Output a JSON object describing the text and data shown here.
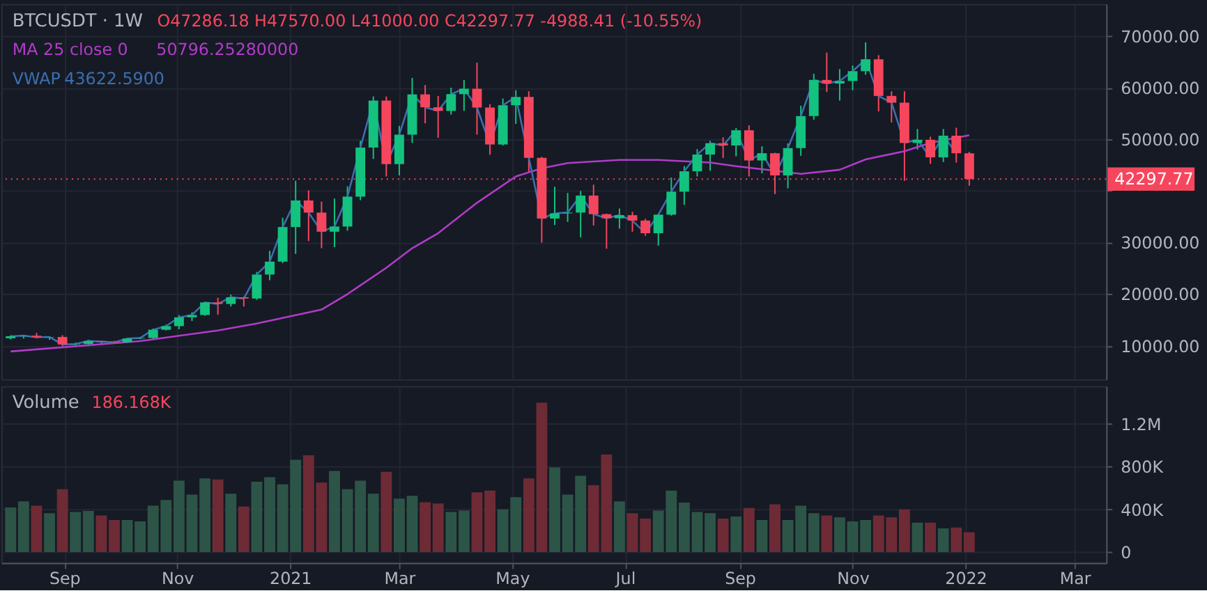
{
  "chart_data": [
    {
      "type": "candlestick",
      "title": "BTCUSDT · 1W",
      "annotations": [
        "O47286.18 H47570.00 L41000.00 C42297.77 -4988.41 (-10.55%)",
        "50796.25280000",
        "43622.5900"
      ],
      "x": [
        "2020-08-03",
        "2020-08-10",
        "2020-08-17",
        "2020-08-24",
        "2020-08-31",
        "2020-09-07",
        "2020-09-14",
        "2020-09-21",
        "2020-09-28",
        "2020-10-05",
        "2020-10-12",
        "2020-10-19",
        "2020-10-26",
        "2020-11-02",
        "2020-11-09",
        "2020-11-16",
        "2020-11-23",
        "2020-11-30",
        "2020-12-07",
        "2020-12-14",
        "2020-12-21",
        "2020-12-28",
        "2021-01-04",
        "2021-01-11",
        "2021-01-18",
        "2021-01-25",
        "2021-02-01",
        "2021-02-08",
        "2021-02-15",
        "2021-02-22",
        "2021-03-01",
        "2021-03-08",
        "2021-03-15",
        "2021-03-22",
        "2021-03-29",
        "2021-04-05",
        "2021-04-12",
        "2021-04-19",
        "2021-04-26",
        "2021-05-03",
        "2021-05-10",
        "2021-05-17",
        "2021-05-24",
        "2021-05-31",
        "2021-06-07",
        "2021-06-14",
        "2021-06-21",
        "2021-06-28",
        "2021-07-05",
        "2021-07-12",
        "2021-07-19",
        "2021-07-26",
        "2021-08-02",
        "2021-08-09",
        "2021-08-16",
        "2021-08-23",
        "2021-08-30",
        "2021-09-06",
        "2021-09-13",
        "2021-09-20",
        "2021-09-27",
        "2021-10-04",
        "2021-10-11",
        "2021-10-18",
        "2021-10-25",
        "2021-11-01",
        "2021-11-08",
        "2021-11-15",
        "2021-11-22",
        "2021-11-29",
        "2021-12-06",
        "2021-12-13",
        "2021-12-20",
        "2021-12-27",
        "2022-01-03"
      ],
      "ohlc": [
        [
          11450,
          12050,
          11200,
          11850
        ],
        [
          11850,
          12150,
          11400,
          11950
        ],
        [
          11950,
          12470,
          11400,
          11650
        ],
        [
          11650,
          11800,
          11150,
          11700
        ],
        [
          11700,
          12050,
          9900,
          10250
        ],
        [
          10250,
          10600,
          9900,
          10330
        ],
        [
          10330,
          11180,
          10150,
          10930
        ],
        [
          10930,
          10950,
          10300,
          10780
        ],
        [
          10780,
          10950,
          10400,
          10670
        ],
        [
          10670,
          11500,
          10550,
          11390
        ],
        [
          11390,
          11720,
          11250,
          11500
        ],
        [
          11500,
          13350,
          11400,
          13100
        ],
        [
          13100,
          14100,
          12950,
          13800
        ],
        [
          13800,
          15960,
          13200,
          15500
        ],
        [
          15500,
          16480,
          14800,
          15960
        ],
        [
          15960,
          18500,
          15800,
          18400
        ],
        [
          18400,
          19300,
          16000,
          18100
        ],
        [
          18100,
          19900,
          17600,
          19400
        ],
        [
          19400,
          19500,
          17600,
          19150
        ],
        [
          19150,
          24300,
          18900,
          23800
        ],
        [
          23800,
          28400,
          22700,
          26300
        ],
        [
          26300,
          34800,
          26000,
          33000
        ],
        [
          33000,
          41950,
          27800,
          38150
        ],
        [
          38150,
          40100,
          30300,
          35800
        ],
        [
          35800,
          37900,
          28900,
          32100
        ],
        [
          32100,
          38500,
          29100,
          33100
        ],
        [
          33100,
          40900,
          32300,
          38900
        ],
        [
          38900,
          49700,
          38200,
          48400
        ],
        [
          48400,
          58300,
          46200,
          57500
        ],
        [
          57500,
          58300,
          42800,
          45200
        ],
        [
          45200,
          52600,
          43000,
          50900
        ],
        [
          50900,
          61900,
          49300,
          58700
        ],
        [
          58700,
          60500,
          53100,
          56200
        ],
        [
          56200,
          58400,
          50300,
          55500
        ],
        [
          55500,
          60000,
          54800,
          58750
        ],
        [
          58750,
          61500,
          55500,
          59800
        ],
        [
          59800,
          64850,
          50900,
          56150
        ],
        [
          56150,
          56800,
          47000,
          49000
        ],
        [
          49000,
          57900,
          48800,
          56600
        ],
        [
          56600,
          59500,
          53000,
          58200
        ],
        [
          58200,
          59300,
          43700,
          46400
        ],
        [
          46400,
          46600,
          30000,
          34650
        ],
        [
          34650,
          40800,
          33400,
          35650
        ],
        [
          35650,
          39600,
          34000,
          35800
        ],
        [
          35800,
          40000,
          31000,
          39100
        ],
        [
          39100,
          41200,
          33300,
          35500
        ],
        [
          35500,
          35600,
          28800,
          34700
        ],
        [
          34700,
          36600,
          32700,
          35300
        ],
        [
          35300,
          35950,
          32100,
          34250
        ],
        [
          34250,
          34600,
          31300,
          31800
        ],
        [
          31800,
          35500,
          29400,
          35400
        ],
        [
          35400,
          42600,
          35200,
          39850
        ],
        [
          39850,
          44800,
          37300,
          43800
        ],
        [
          43800,
          48100,
          42800,
          47050
        ],
        [
          47050,
          49700,
          43900,
          49250
        ],
        [
          49250,
          50400,
          46400,
          48800
        ],
        [
          48800,
          52200,
          46700,
          51750
        ],
        [
          51750,
          52700,
          42800,
          45900
        ],
        [
          45900,
          48650,
          43400,
          47300
        ],
        [
          47300,
          47400,
          39400,
          43000
        ],
        [
          43000,
          49200,
          40500,
          48300
        ],
        [
          48300,
          56500,
          46800,
          54500
        ],
        [
          54500,
          62700,
          53800,
          61500
        ],
        [
          61500,
          66800,
          59150,
          60800
        ],
        [
          60800,
          63600,
          57500,
          61300
        ],
        [
          61300,
          64300,
          59500,
          63200
        ],
        [
          63200,
          68800,
          62500,
          65500
        ],
        [
          65500,
          66300,
          55400,
          58400
        ],
        [
          58400,
          59300,
          53250,
          57100
        ],
        [
          57100,
          59300,
          41950,
          49300
        ],
        [
          49300,
          52000,
          48000,
          49900
        ],
        [
          49900,
          50500,
          45250,
          46500
        ],
        [
          46500,
          52000,
          45600,
          50700
        ],
        [
          50700,
          52250,
          45500,
          47300
        ],
        [
          47286.18,
          47570,
          41000,
          42297.77
        ]
      ],
      "colors": [
        "#13c27f",
        "#13c27f",
        "#f6465d",
        "#13c27f",
        "#f6465d",
        "#13c27f",
        "#13c27f",
        "#f6465d",
        "#f6465d",
        "#13c27f",
        "#13c27f",
        "#13c27f",
        "#13c27f",
        "#13c27f",
        "#13c27f",
        "#13c27f",
        "#f6465d",
        "#13c27f",
        "#f6465d",
        "#13c27f",
        "#13c27f",
        "#13c27f",
        "#13c27f",
        "#f6465d",
        "#f6465d",
        "#13c27f",
        "#13c27f",
        "#13c27f",
        "#13c27f",
        "#f6465d",
        "#13c27f",
        "#13c27f",
        "#f6465d",
        "#f6465d",
        "#13c27f",
        "#13c27f",
        "#f6465d",
        "#f6465d",
        "#13c27f",
        "#13c27f",
        "#f6465d",
        "#f6465d",
        "#13c27f",
        "#13c27f",
        "#13c27f",
        "#f6465d",
        "#f6465d",
        "#13c27f",
        "#f6465d",
        "#f6465d",
        "#13c27f",
        "#13c27f",
        "#13c27f",
        "#13c27f",
        "#13c27f",
        "#f6465d",
        "#13c27f",
        "#f6465d",
        "#13c27f",
        "#f6465d",
        "#13c27f",
        "#13c27f",
        "#13c27f",
        "#f6465d",
        "#13c27f",
        "#13c27f",
        "#13c27f",
        "#f6465d",
        "#f6465d",
        "#f6465d",
        "#13c27f",
        "#f6465d",
        "#13c27f",
        "#f6465d",
        "#f6465d"
      ],
      "series": [
        {
          "name": "MA 25 close 0",
          "type": "line",
          "color": "#b03cc8",
          "x": [
            "2020-08-03",
            "2020-10-12",
            "2020-11-23",
            "2020-12-14",
            "2021-01-18",
            "2021-02-01",
            "2021-02-22",
            "2021-03-08",
            "2021-03-22",
            "2021-04-12",
            "2021-05-03",
            "2021-05-17",
            "2021-05-31",
            "2021-06-28",
            "2021-07-19",
            "2021-08-16",
            "2021-08-30",
            "2021-09-20",
            "2021-10-04",
            "2021-10-25",
            "2021-11-08",
            "2021-11-29",
            "2021-12-13",
            "2022-01-03"
          ],
          "values": [
            8900,
            10900,
            12970,
            14300,
            17000,
            20000,
            25100,
            28900,
            31800,
            37700,
            42800,
            44400,
            45400,
            46000,
            46000,
            45500,
            44800,
            43900,
            43300,
            44100,
            46100,
            47700,
            49300,
            50796.2528
          ]
        },
        {
          "name": "VWAP",
          "type": "line",
          "color": "#3b6fb0",
          "values": [
            11850,
            11950,
            11650,
            11700,
            10250,
            10330,
            10930,
            10780,
            10670,
            11390,
            11500,
            13100,
            13800,
            15500,
            15960,
            18400,
            18100,
            19400,
            19150,
            23800,
            26300,
            33000,
            38150,
            35800,
            32100,
            33100,
            38900,
            48400,
            57500,
            45200,
            50900,
            58700,
            56200,
            55500,
            58750,
            59800,
            56150,
            49000,
            56600,
            58200,
            46400,
            34650,
            35650,
            35800,
            39100,
            35500,
            34700,
            35300,
            34250,
            31800,
            35400,
            39850,
            43800,
            47050,
            49250,
            48800,
            51750,
            45900,
            47300,
            43000,
            48300,
            54500,
            61500,
            60800,
            61300,
            63200,
            65500,
            58400,
            57100,
            49300,
            49900,
            46500,
            50700,
            47300,
            null
          ]
        }
      ],
      "xlim": [
        "2020-07-29",
        "2022-03-18"
      ],
      "xticks": [
        {
          "value": "2020-09-01",
          "label": null
        },
        {
          "value": "2020-11-01",
          "label": null
        },
        {
          "value": "2021-01-01",
          "label": null
        },
        {
          "value": "2021-03-01",
          "label": null
        },
        {
          "value": "2021-05-01",
          "label": null
        },
        {
          "value": "2021-07-01",
          "label": null
        },
        {
          "value": "2021-09-01",
          "label": null
        },
        {
          "value": "2021-11-01",
          "label": null
        },
        {
          "value": "2022-01-01",
          "label": null
        },
        {
          "value": "2022-03-01",
          "label": null
        }
      ],
      "ylim": [
        3500,
        76200
      ],
      "yticks": [
        {
          "value": 10000,
          "label": "10000.00"
        },
        {
          "value": 20000,
          "label": "20000.00"
        },
        {
          "value": 30000,
          "label": "30000.00"
        },
        {
          "value": 40000,
          "label": null
        },
        {
          "value": 50000,
          "label": "50000.00"
        },
        {
          "value": 60000,
          "label": "60000.00"
        },
        {
          "value": 70000,
          "label": "70000.00"
        }
      ],
      "ref_lines": [
        {
          "axis": "y",
          "value": 42297.77,
          "label": "42297.77",
          "color": "#f6465d",
          "line_style": "dotted"
        }
      ],
      "grid": true,
      "tick_labels": "y"
    },
    {
      "type": "bar",
      "title": "Volume",
      "annotations": [
        "186.168K"
      ],
      "x": [
        "2020-08-03",
        "2020-08-10",
        "2020-08-17",
        "2020-08-24",
        "2020-08-31",
        "2020-09-07",
        "2020-09-14",
        "2020-09-21",
        "2020-09-28",
        "2020-10-05",
        "2020-10-12",
        "2020-10-19",
        "2020-10-26",
        "2020-11-02",
        "2020-11-09",
        "2020-11-16",
        "2020-11-23",
        "2020-11-30",
        "2020-12-07",
        "2020-12-14",
        "2020-12-21",
        "2020-12-28",
        "2021-01-04",
        "2021-01-11",
        "2021-01-18",
        "2021-01-25",
        "2021-02-01",
        "2021-02-08",
        "2021-02-15",
        "2021-02-22",
        "2021-03-01",
        "2021-03-08",
        "2021-03-15",
        "2021-03-22",
        "2021-03-29",
        "2021-04-05",
        "2021-04-12",
        "2021-04-19",
        "2021-04-26",
        "2021-05-03",
        "2021-05-10",
        "2021-05-17",
        "2021-05-24",
        "2021-05-31",
        "2021-06-07",
        "2021-06-14",
        "2021-06-21",
        "2021-06-28",
        "2021-07-05",
        "2021-07-12",
        "2021-07-19",
        "2021-07-26",
        "2021-08-02",
        "2021-08-09",
        "2021-08-16",
        "2021-08-23",
        "2021-08-30",
        "2021-09-06",
        "2021-09-13",
        "2021-09-20",
        "2021-09-27",
        "2021-10-04",
        "2021-10-11",
        "2021-10-18",
        "2021-10-25",
        "2021-11-01",
        "2021-11-08",
        "2021-11-15",
        "2021-11-22",
        "2021-11-29",
        "2021-12-06",
        "2021-12-13",
        "2021-12-20",
        "2021-12-27",
        "2022-01-03"
      ],
      "values": [
        418000,
        476000,
        435000,
        364000,
        589000,
        376000,
        385000,
        343000,
        301000,
        301000,
        288000,
        435000,
        489000,
        669000,
        539000,
        690000,
        681000,
        548000,
        426000,
        660000,
        702000,
        635000,
        865000,
        907000,
        652000,
        761000,
        589000,
        669000,
        548000,
        752000,
        502000,
        527000,
        468000,
        456000,
        376000,
        389000,
        560000,
        577000,
        401000,
        514000,
        690000,
        1400000,
        794000,
        539000,
        715000,
        627000,
        915000,
        476000,
        364000,
        314000,
        389000,
        577000,
        464000,
        376000,
        364000,
        314000,
        334000,
        414000,
        301000,
        447000,
        301000,
        435000,
        364000,
        343000,
        326000,
        288000,
        301000,
        343000,
        326000,
        401000,
        276000,
        276000,
        222000,
        230000,
        186168
      ],
      "colors": [
        "#2c5547",
        "#2c5547",
        "#6e2b35",
        "#2c5547",
        "#6e2b35",
        "#2c5547",
        "#2c5547",
        "#6e2b35",
        "#6e2b35",
        "#2c5547",
        "#2c5547",
        "#2c5547",
        "#2c5547",
        "#2c5547",
        "#2c5547",
        "#2c5547",
        "#6e2b35",
        "#2c5547",
        "#6e2b35",
        "#2c5547",
        "#2c5547",
        "#2c5547",
        "#2c5547",
        "#6e2b35",
        "#6e2b35",
        "#2c5547",
        "#2c5547",
        "#2c5547",
        "#2c5547",
        "#6e2b35",
        "#2c5547",
        "#2c5547",
        "#6e2b35",
        "#6e2b35",
        "#2c5547",
        "#2c5547",
        "#6e2b35",
        "#6e2b35",
        "#2c5547",
        "#2c5547",
        "#6e2b35",
        "#6e2b35",
        "#2c5547",
        "#2c5547",
        "#2c5547",
        "#6e2b35",
        "#6e2b35",
        "#2c5547",
        "#6e2b35",
        "#6e2b35",
        "#2c5547",
        "#2c5547",
        "#2c5547",
        "#2c5547",
        "#2c5547",
        "#6e2b35",
        "#2c5547",
        "#6e2b35",
        "#2c5547",
        "#6e2b35",
        "#2c5547",
        "#2c5547",
        "#2c5547",
        "#6e2b35",
        "#2c5547",
        "#2c5547",
        "#2c5547",
        "#6e2b35",
        "#6e2b35",
        "#6e2b35",
        "#2c5547",
        "#6e2b35",
        "#2c5547",
        "#6e2b35",
        "#6e2b35"
      ],
      "xlim": [
        "2020-07-29",
        "2022-03-18"
      ],
      "xticks": [
        {
          "value": "2020-09-01",
          "label": "Sep"
        },
        {
          "value": "2020-11-01",
          "label": "Nov"
        },
        {
          "value": "2021-01-01",
          "label": "2021"
        },
        {
          "value": "2021-03-01",
          "label": "Mar"
        },
        {
          "value": "2021-05-01",
          "label": "May"
        },
        {
          "value": "2021-07-01",
          "label": "Jul"
        },
        {
          "value": "2021-09-01",
          "label": "Sep"
        },
        {
          "value": "2021-11-01",
          "label": "Nov"
        },
        {
          "value": "2022-01-01",
          "label": "2022"
        },
        {
          "value": "2022-03-01",
          "label": "Mar"
        }
      ],
      "ylim": [
        -100000,
        1555000
      ],
      "yticks": [
        {
          "value": 0,
          "label": "0"
        },
        {
          "value": 400000,
          "label": "400K"
        },
        {
          "value": 800000,
          "label": "800K"
        },
        {
          "value": 1200000,
          "label": "1.2M"
        }
      ],
      "grid": true
    }
  ]
}
